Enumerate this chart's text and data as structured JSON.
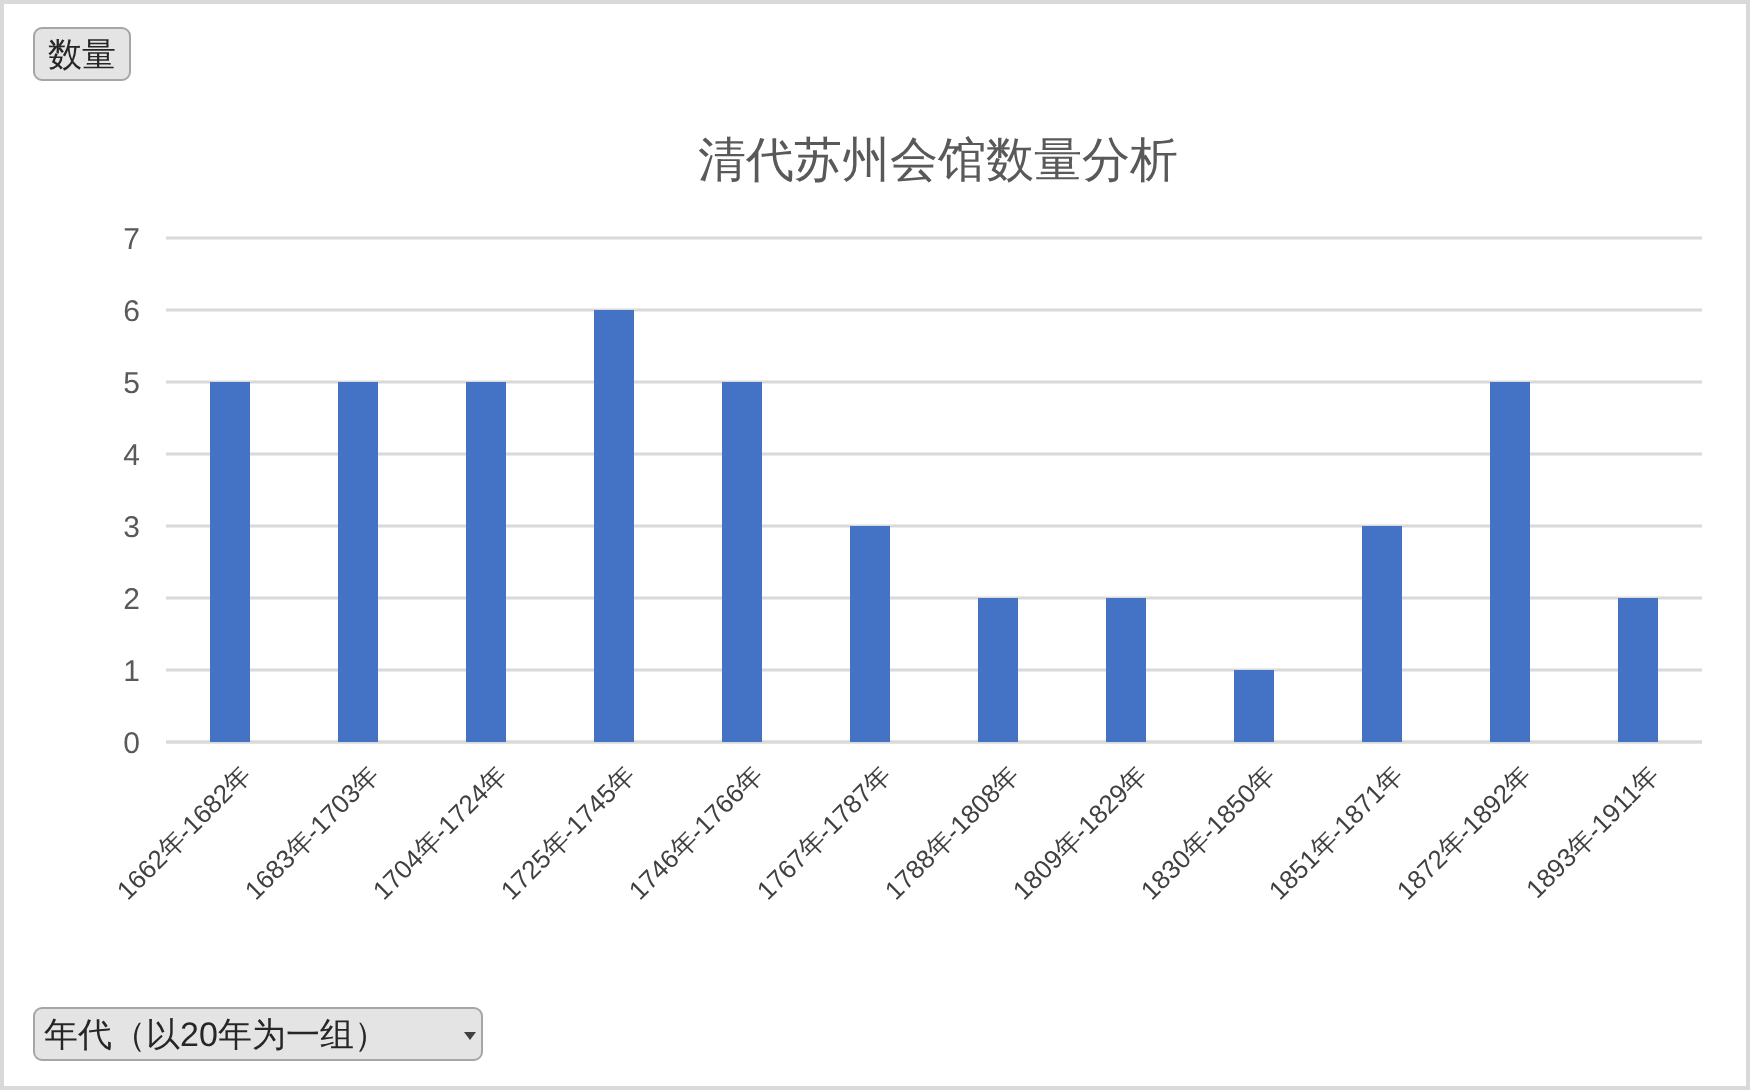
{
  "chart_data": {
    "type": "bar",
    "title": "清代苏州会馆数量分析",
    "ylabel": "数量",
    "xlabel": "年代（以20年为一组）",
    "categories": [
      "1662年-1682年",
      "1683年-1703年",
      "1704年-1724年",
      "1725年-1745年",
      "1746年-1766年",
      "1767年-1787年",
      "1788年-1808年",
      "1809年-1829年",
      "1830年-1850年",
      "1851年-1871年",
      "1872年-1892年",
      "1893年-1911年"
    ],
    "values": [
      5,
      5,
      5,
      6,
      5,
      3,
      2,
      2,
      1,
      3,
      5,
      2
    ],
    "color": "#4472c4",
    "ylim": [
      0,
      7
    ],
    "yticks": [
      0,
      1,
      2,
      3,
      4,
      5,
      6,
      7
    ],
    "grid": "y"
  }
}
